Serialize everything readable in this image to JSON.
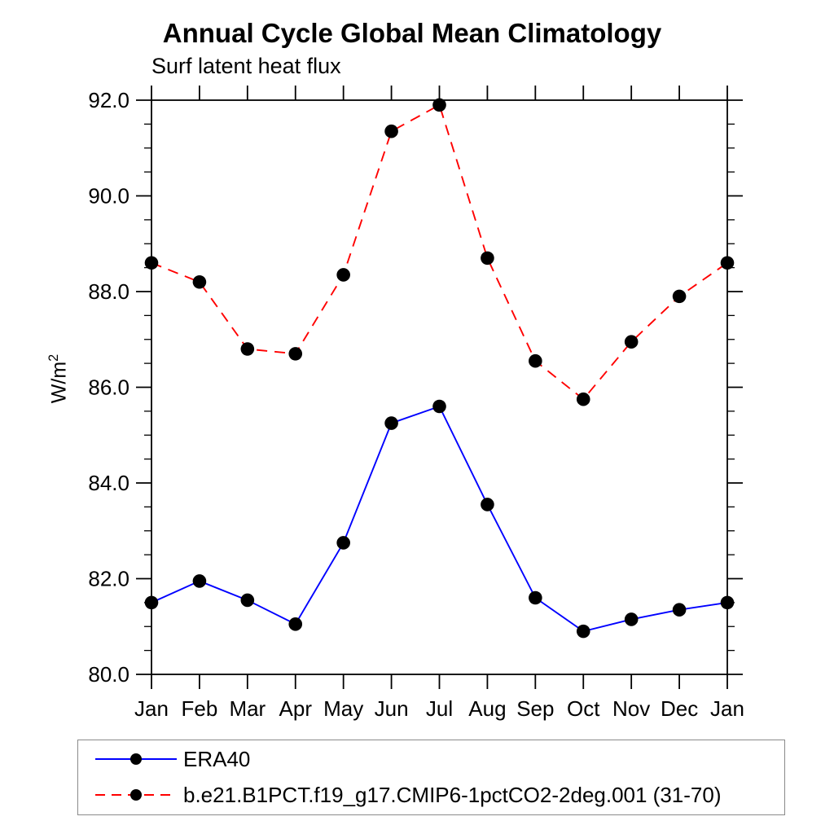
{
  "chart_data": {
    "type": "line",
    "title": "Annual Cycle Global Mean Climatology",
    "subtitle": "Surf latent heat flux",
    "ylabel": {
      "base": "W/m",
      "exponent": "2"
    },
    "x_categories": [
      "Jan",
      "Feb",
      "Mar",
      "Apr",
      "May",
      "Jun",
      "Jul",
      "Aug",
      "Sep",
      "Oct",
      "Nov",
      "Dec",
      "Jan"
    ],
    "ylim": [
      80.0,
      92.0
    ],
    "ytick_labels": [
      "80.0",
      "82.0",
      "84.0",
      "86.0",
      "88.0",
      "90.0",
      "92.0"
    ],
    "ytick_major_step": 2.0,
    "ytick_minor_step": 0.5,
    "grid": false,
    "legend_position": "bottom-left",
    "axis_color": "#000000",
    "series": [
      {
        "name": "ERA40",
        "color": "#0000ff",
        "line_style": "solid",
        "marker": "filled-circle",
        "marker_color": "#000000",
        "values": [
          81.5,
          81.95,
          81.55,
          81.05,
          82.75,
          85.25,
          85.6,
          83.55,
          81.6,
          80.9,
          81.15,
          81.35,
          81.5
        ]
      },
      {
        "name": "b.e21.B1PCT.f19_g17.CMIP6-1pctCO2-2deg.001 (31-70)",
        "color": "#ff0000",
        "line_style": "dashed",
        "marker": "filled-circle",
        "marker_color": "#000000",
        "values": [
          88.6,
          88.2,
          86.8,
          86.7,
          88.35,
          91.35,
          91.9,
          88.7,
          86.55,
          85.75,
          86.95,
          87.9,
          88.6
        ]
      }
    ]
  }
}
